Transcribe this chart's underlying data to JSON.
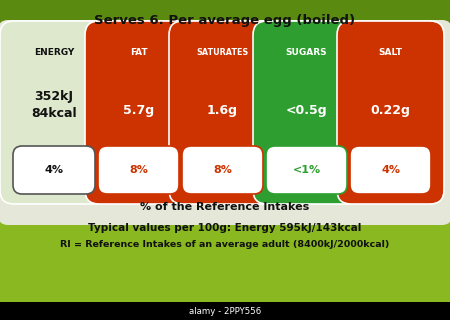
{
  "title": "Serves 6. Per average egg (boiled)",
  "bg_top": "#6a9e1a",
  "bg_bottom": "#8ab820",
  "panel_color": "#e8ead8",
  "nutrients": [
    {
      "name": "ENERGY",
      "value": "352kJ\n84kcal",
      "percent": "4%",
      "pill_color": "#dde8cc",
      "text_color": "#111111",
      "percent_text_color": "#111111",
      "name_color": "#111111",
      "border_color": "#555555"
    },
    {
      "name": "FAT",
      "value": "5.7g",
      "percent": "8%",
      "pill_color": "#cc3300",
      "text_color": "#ffffff",
      "percent_text_color": "#cc3300",
      "name_color": "#ffffff",
      "border_color": "#cc3300"
    },
    {
      "name": "SATURATES",
      "value": "1.6g",
      "percent": "8%",
      "pill_color": "#cc3300",
      "text_color": "#ffffff",
      "percent_text_color": "#cc3300",
      "name_color": "#ffffff",
      "border_color": "#cc3300"
    },
    {
      "name": "SUGARS",
      "value": "<0.5g",
      "percent": "<1%",
      "pill_color": "#2e9e30",
      "text_color": "#ffffff",
      "percent_text_color": "#2e9e30",
      "name_color": "#ffffff",
      "border_color": "#2e9e30"
    },
    {
      "name": "SALT",
      "value": "0.22g",
      "percent": "4%",
      "pill_color": "#cc3300",
      "text_color": "#ffffff",
      "percent_text_color": "#cc3300",
      "name_color": "#ffffff",
      "border_color": "#cc3300"
    }
  ],
  "ref_text": "% of the Reference Intakes",
  "footer1": "Typical values per 100g: Energy 595kJ/143kcal",
  "footer2": "RI = Reference Intakes of an average adult (8400kJ/2000kcal)",
  "watermark": "alamy - 2PPY556"
}
